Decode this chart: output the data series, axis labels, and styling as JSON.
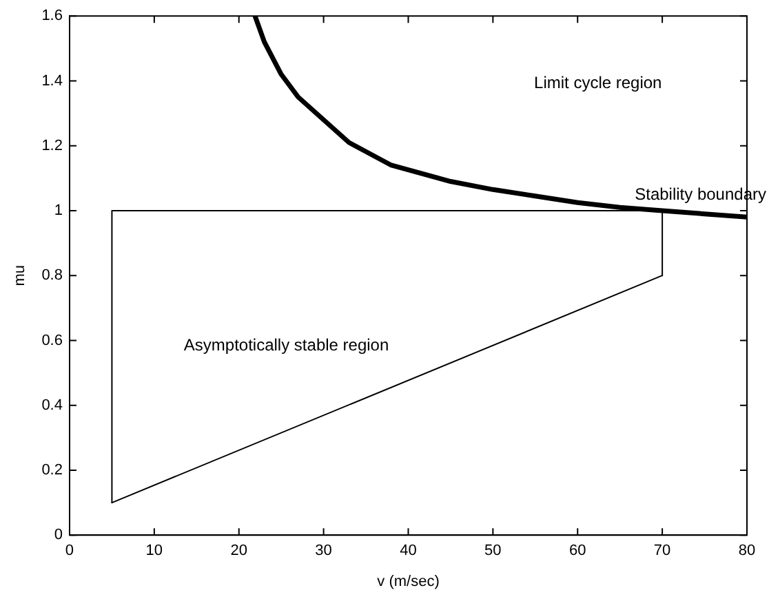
{
  "chart_data": {
    "type": "line",
    "xlabel": "v (m/sec)",
    "ylabel": "mu",
    "xlim": [
      0,
      80
    ],
    "ylim": [
      0,
      1.6
    ],
    "xticks": [
      0,
      10,
      20,
      30,
      40,
      50,
      60,
      70,
      80
    ],
    "yticks": [
      0,
      0.2,
      0.4,
      0.6,
      0.8,
      1,
      1.2,
      1.4,
      1.6
    ],
    "grid": false,
    "legend": false,
    "marker": "none",
    "line_style": "solid",
    "series": [
      {
        "color": "#000000",
        "x": [
          21.9,
          23,
          25,
          27,
          30,
          33,
          38,
          45,
          50,
          55,
          60,
          65,
          70,
          75,
          80
        ],
        "values": [
          1.6,
          1.52,
          1.42,
          1.35,
          1.28,
          1.21,
          1.14,
          1.09,
          1.065,
          1.045,
          1.025,
          1.01,
          1.0,
          0.99,
          0.98
        ]
      },
      {
        "color": "#000000",
        "x": [
          5,
          5,
          70,
          70
        ],
        "values": [
          0.1,
          1,
          1,
          0.8
        ]
      },
      {
        "color": "#000000",
        "x": [
          5,
          70
        ],
        "values": [
          0.1,
          0.8
        ]
      }
    ],
    "annotations": [
      "Limit cycle region",
      "Stability boundary",
      "Asymptotically stable region"
    ]
  }
}
